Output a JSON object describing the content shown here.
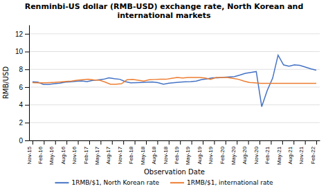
{
  "chart_data": {
    "type": "line",
    "title": "Renminbi-US dollar (RMB-USD) exchange rate, North Korean and\ninternational markets",
    "x_label": "Observation Date",
    "y_label": "RMB/USD",
    "xlim": [
      -0.3,
      25.3
    ],
    "xticks": [
      {
        "value": 0,
        "label": "Nov-15"
      },
      {
        "value": 1,
        "label": "Feb-16"
      },
      {
        "value": 2,
        "label": "May-16"
      },
      {
        "value": 3,
        "label": "Aug-16"
      },
      {
        "value": 4,
        "label": "Nov-16"
      },
      {
        "value": 5,
        "label": "Feb-17"
      },
      {
        "value": 6,
        "label": "May-17"
      },
      {
        "value": 7,
        "label": "Aug-17"
      },
      {
        "value": 8,
        "label": "Nov-17"
      },
      {
        "value": 9,
        "label": "Feb-18"
      },
      {
        "value": 10,
        "label": "May-18"
      },
      {
        "value": 11,
        "label": "Aug-18"
      },
      {
        "value": 12,
        "label": "Nov-18"
      },
      {
        "value": 13,
        "label": "Feb-19"
      },
      {
        "value": 14,
        "label": "May-19"
      },
      {
        "value": 15,
        "label": "Aug-19"
      },
      {
        "value": 16,
        "label": "Nov-19"
      },
      {
        "value": 17,
        "label": "Feb-20"
      },
      {
        "value": 18,
        "label": "May-20"
      },
      {
        "value": 19,
        "label": "Aug-20"
      },
      {
        "value": 20,
        "label": "Nov-20"
      },
      {
        "value": 21,
        "label": "Feb-21"
      },
      {
        "value": 22,
        "label": "May-21"
      },
      {
        "value": 23,
        "label": "Aug-21"
      },
      {
        "value": 24,
        "label": "Nov-21"
      },
      {
        "value": 25,
        "label": "Feb-22"
      }
    ],
    "ylim": [
      0,
      13
    ],
    "yticks": [
      0,
      2,
      4,
      6,
      8,
      10,
      12
    ],
    "grid": true,
    "legend": "bottom",
    "series": [
      {
        "name": "1RMB/$1, North Korean rate",
        "color": "#4472C4",
        "x": [
          0,
          0.4807692307692308,
          0.9615384615384616,
          1.4423076923076923,
          1.9230769230769231,
          2.4038461538461537,
          2.8846153846153846,
          3.3653846153846154,
          3.8461538461538463,
          4.326923076923077,
          4.8076923076923075,
          5.288461538461538,
          5.769230769230769,
          6.25,
          6.730769230769231,
          7.211538461538462,
          7.6923076923076925,
          8.173076923076923,
          8.653846153846153,
          9.134615384615385,
          9.615384615384615,
          10.096153846153847,
          10.576923076923077,
          11.057692307692308,
          11.538461538461538,
          12.01923076923077,
          12.5,
          12.98076923076923,
          13.461538461538462,
          13.942307692307692,
          14.423076923076923,
          14.903846153846153,
          15.384615384615385,
          15.865384615384615,
          16.346153846153847,
          16.826923076923077,
          17.307692307692307,
          17.78846153846154,
          18.26923076923077,
          18.75,
          19.23076923076923,
          19.71153846153846,
          20.192307692307693,
          20.673076923076923,
          21.153846153846153,
          21.634615384615383,
          22.115384615384617,
          22.596153846153847,
          23.076923076923077,
          23.557692307692307,
          24.03846153846154,
          24.51923076923077,
          25
        ],
        "values": [
          6.6,
          6.55,
          6.3,
          6.3,
          6.38,
          6.45,
          6.55,
          6.6,
          6.65,
          6.7,
          6.62,
          6.75,
          6.82,
          6.88,
          7.05,
          6.95,
          6.88,
          6.62,
          6.48,
          6.5,
          6.52,
          6.55,
          6.58,
          6.5,
          6.33,
          6.45,
          6.5,
          6.55,
          6.6,
          6.62,
          6.68,
          6.85,
          6.92,
          7.05,
          7.05,
          7.1,
          7.15,
          7.18,
          7.35,
          7.55,
          7.65,
          7.75,
          3.8,
          5.6,
          7.0,
          9.6,
          8.5,
          8.35,
          8.5,
          8.45,
          8.25,
          8.05,
          7.9
        ]
      },
      {
        "name": "1RMB/$1, international rate",
        "color": "#ED7D31",
        "x": [
          0,
          0.49019607843137253,
          0.9803921568627451,
          1.4705882352941178,
          1.9607843137254901,
          2.4509803921568625,
          2.9411764705882355,
          3.431372549019608,
          3.9215686274509802,
          4.411764705882353,
          4.901960784313725,
          5.392156862745098,
          5.882352941176471,
          6.372549019607843,
          6.862745098039216,
          7.352941176470588,
          7.8431372549019605,
          8.333333333333334,
          8.823529411764707,
          9.313725490196079,
          9.803921568627452,
          10.294117647058824,
          10.784313725490197,
          11.27450980392157,
          11.764705882352942,
          12.254901960784315,
          12.745098039215687,
          13.23529411764706,
          13.725490196078432,
          14.215686274509805,
          14.705882352941178,
          15.19607843137255,
          15.686274509803923,
          16.176470588235297,
          16.66666666666667,
          17.15686274509804,
          17.647058823529413,
          18.137254901960787,
          18.62745098039216,
          19.11764705882353,
          19.607843137254903,
          20.098039215686278,
          20.58823529411765,
          21.078431372549023,
          21.568627450980394,
          22.058823529411768,
          22.54901960784314,
          23.039215686274513,
          23.529411764705884,
          24.01960784313726,
          24.50980392156863,
          25
        ],
        "values": [
          6.5,
          6.48,
          6.48,
          6.5,
          6.53,
          6.58,
          6.63,
          6.68,
          6.78,
          6.83,
          6.88,
          6.82,
          6.78,
          6.58,
          6.33,
          6.33,
          6.38,
          6.83,
          6.86,
          6.78,
          6.68,
          6.83,
          6.86,
          6.88,
          6.88,
          6.98,
          7.08,
          7.02,
          7.08,
          7.08,
          7.08,
          7.02,
          6.88,
          7.08,
          7.08,
          7.08,
          6.98,
          6.88,
          6.68,
          6.52,
          6.48,
          6.42,
          6.42,
          6.42,
          6.42,
          6.42,
          6.42,
          6.42,
          6.42,
          6.42,
          6.42,
          6.42
        ]
      }
    ]
  }
}
